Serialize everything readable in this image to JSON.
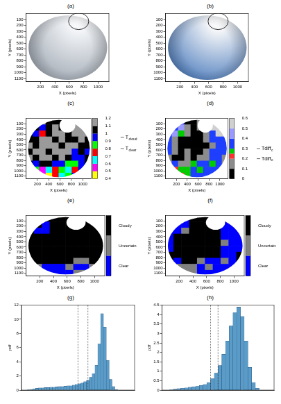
{
  "chart_data": [
    {
      "panel": "(a)",
      "type": "image",
      "color": "#9aa3ae",
      "x_label": "X (pixels)",
      "y_label": "Y (pixels)",
      "xlim": [
        0,
        1150
      ],
      "ylim": [
        1150,
        0
      ],
      "xticks": [
        200,
        400,
        600,
        800,
        1000
      ],
      "yticks": [
        100,
        200,
        300,
        400,
        500,
        600,
        700,
        800,
        900,
        1000,
        1100
      ],
      "grid": false,
      "sky_circle": {
        "x": 580,
        "y": 575,
        "r": 545
      },
      "sun_mask": {
        "x": 730,
        "y": 130,
        "r": 140
      }
    },
    {
      "panel": "(b)",
      "type": "image",
      "color": "#3f72b8",
      "x_label": "X (pixels)",
      "y_label": "Y (pixels)",
      "xlim": [
        0,
        1150
      ],
      "ylim": [
        1150,
        0
      ],
      "xticks": [
        200,
        400,
        600,
        800,
        1000
      ],
      "yticks": [
        100,
        200,
        300,
        400,
        500,
        600,
        700,
        800,
        900,
        1000,
        1100
      ],
      "grid": false,
      "sky_circle": {
        "x": 580,
        "y": 575,
        "r": 545
      },
      "sun_mask": {
        "x": 730,
        "y": 130,
        "r": 140
      }
    },
    {
      "panel": "(c)",
      "type": "heatmap",
      "x_label": "X (pixels)",
      "y_label": "Y (pixels)",
      "xlim": [
        0,
        1150
      ],
      "ylim": [
        1150,
        0
      ],
      "xticks": [
        200,
        400,
        600,
        800,
        1000
      ],
      "yticks": [
        100,
        200,
        300,
        400,
        500,
        600,
        700,
        800,
        900,
        1000,
        1100
      ],
      "grid": false,
      "sky_circle": {
        "x": 580,
        "y": 575,
        "r": 545
      },
      "sun_mask": {
        "x": 730,
        "y": 130,
        "r": 140
      },
      "cells": [
        [
          1.15,
          1.15,
          1.15,
          1.05,
          1.05,
          1.05,
          1.15,
          1.15,
          1.15,
          1.15
        ],
        [
          1.15,
          1.05,
          0.95,
          1.05,
          1.15,
          1.05,
          1.15,
          1.15,
          1.15,
          1.15
        ],
        [
          1.05,
          0.95,
          0.75,
          1.05,
          1.15,
          1.15,
          1.05,
          1.15,
          1.15,
          1.15
        ],
        [
          1.05,
          1.05,
          1.15,
          1.15,
          1.05,
          1.15,
          1.05,
          1.05,
          1.15,
          1.05
        ],
        [
          1.15,
          1.05,
          1.15,
          1.15,
          1.15,
          1.05,
          1.15,
          1.15,
          1.05,
          1.05
        ],
        [
          1.05,
          1.15,
          1.15,
          1.05,
          1.15,
          1.15,
          1.15,
          0.95,
          1.05,
          0.95
        ],
        [
          1.15,
          1.05,
          1.15,
          1.15,
          1.05,
          1.15,
          1.05,
          0.95,
          0.95,
          1.05
        ],
        [
          1.05,
          0.95,
          1.05,
          1.05,
          0.95,
          0.95,
          0.85,
          0.85,
          0.95,
          1.05
        ],
        [
          0.95,
          0.85,
          0.55,
          0.65,
          0.75,
          0.85,
          0.65,
          0.75,
          0.95,
          1.05
        ],
        [
          0.95,
          0.45,
          0.55,
          0.45,
          0.75,
          0.65,
          0.85,
          0.95,
          1.05,
          1.05
        ]
      ],
      "colorbar": {
        "range": [
          0.4,
          1.2
        ],
        "ticks": [
          0.4,
          0.5,
          0.6,
          0.7,
          0.8,
          0.9,
          1,
          1.1,
          1.2
        ],
        "bounds": [
          0.4,
          0.5,
          0.6,
          0.7,
          0.8,
          0.9,
          1,
          1.1,
          1.2
        ],
        "colors": [
          "#ffff00",
          "#ff00ff",
          "#00ffff",
          "#ff0000",
          "#00ff00",
          "#0000ff",
          "#000000",
          "#9a9a9a"
        ]
      },
      "annotations": [
        {
          "text": "T",
          "sub": "cloud",
          "value": 0.95
        },
        {
          "text": "T",
          "sub": "clear",
          "value": 0.8
        }
      ]
    },
    {
      "panel": "(d)",
      "type": "heatmap",
      "x_label": "X (pixels)",
      "y_label": "Y (pixels)",
      "xlim": [
        0,
        1150
      ],
      "ylim": [
        1150,
        0
      ],
      "xticks": [
        200,
        400,
        600,
        800,
        1000
      ],
      "yticks": [
        100,
        200,
        300,
        400,
        500,
        600,
        700,
        800,
        900,
        1000,
        1100
      ],
      "grid": false,
      "sky_circle": {
        "x": 580,
        "y": 575,
        "r": 545
      },
      "sun_mask": {
        "x": 730,
        "y": 130,
        "r": 140
      },
      "cells": [
        [
          0.55,
          0.35,
          0.35,
          0.05,
          0.05,
          0.15,
          0.55,
          0.55,
          0.55,
          0.55
        ],
        [
          0.35,
          0.35,
          0.45,
          0.15,
          0.05,
          0.15,
          0.35,
          0.55,
          0.55,
          0.55
        ],
        [
          0.35,
          0.45,
          0.27,
          0.15,
          0.05,
          0.05,
          0.15,
          0.35,
          0.55,
          0.55
        ],
        [
          0.35,
          0.15,
          0.05,
          0.05,
          0.05,
          0.05,
          0.15,
          0.35,
          0.35,
          0.35
        ],
        [
          0.35,
          0.15,
          0.05,
          0.05,
          0.05,
          0.05,
          0.05,
          0.15,
          0.35,
          0.35
        ],
        [
          0.35,
          0.15,
          0.05,
          0.15,
          0.05,
          0.05,
          0.15,
          0.35,
          0.35,
          0.35
        ],
        [
          0.15,
          0.05,
          0.05,
          0.15,
          0.05,
          0.15,
          0.15,
          0.35,
          0.35,
          0.15
        ],
        [
          0.15,
          0.35,
          0.15,
          0.15,
          0.27,
          0.35,
          0.35,
          0.27,
          0.35,
          0.15
        ],
        [
          0.35,
          0.22,
          0.27,
          0.27,
          0.35,
          0.27,
          0.35,
          0.35,
          0.35,
          0.15
        ],
        [
          0.35,
          0.27,
          0.22,
          0.27,
          0.35,
          0.35,
          0.35,
          0.35,
          0.15,
          0.15
        ]
      ],
      "colorbar": {
        "range": [
          0,
          0.6
        ],
        "ticks": [
          0,
          0.1,
          0.2,
          0.3,
          0.4,
          0.5,
          0.6
        ],
        "bounds": [
          0,
          0.1,
          0.2,
          0.25,
          0.3,
          0.4,
          0.5,
          0.6
        ],
        "colors": [
          "#000000",
          "#8c8c8c",
          "#ff3030",
          "#00cc00",
          "#1f3fff",
          "#9999ff",
          "#d0d0d0"
        ]
      },
      "annotations": [
        {
          "text": "Tdiff",
          "sub": "c",
          "value": 0.3
        },
        {
          "text": "Tdiff",
          "sub": "c",
          "value": 0.2
        }
      ]
    },
    {
      "panel": "(e)",
      "type": "heatmap",
      "x_label": "X (pixels)",
      "y_label": "Y (pixels)",
      "xlim": [
        0,
        1150
      ],
      "ylim": [
        1150,
        0
      ],
      "xticks": [
        200,
        400,
        600,
        800,
        1000
      ],
      "yticks": [
        100,
        200,
        300,
        400,
        500,
        600,
        700,
        800,
        900,
        1000,
        1100
      ],
      "grid": false,
      "sky_circle": {
        "x": 580,
        "y": 575,
        "r": 545
      },
      "sun_mask": {
        "x": 730,
        "y": 130,
        "r": 140
      },
      "classes": [
        {
          "label": "Cloudy",
          "color": "#000000"
        },
        {
          "label": "Uncertain",
          "color": "#808080"
        },
        {
          "label": "Clear",
          "color": "#0000ff"
        }
      ],
      "cells": [
        [
          0,
          0,
          0,
          0,
          0,
          0,
          0,
          0,
          0,
          0
        ],
        [
          0,
          0,
          2,
          0,
          0,
          0,
          0,
          0,
          0,
          0
        ],
        [
          0,
          2,
          2,
          0,
          0,
          0,
          0,
          0,
          0,
          0
        ],
        [
          0,
          0,
          0,
          0,
          0,
          0,
          0,
          0,
          0,
          0
        ],
        [
          0,
          0,
          0,
          0,
          0,
          0,
          0,
          0,
          0,
          0
        ],
        [
          0,
          0,
          0,
          0,
          0,
          0,
          0,
          0,
          0,
          0
        ],
        [
          0,
          0,
          0,
          0,
          0,
          0,
          0,
          0,
          0,
          0
        ],
        [
          0,
          0,
          0,
          0,
          0,
          0,
          1,
          1,
          0,
          0
        ],
        [
          0,
          1,
          2,
          2,
          2,
          1,
          2,
          2,
          1,
          0
        ],
        [
          0,
          2,
          2,
          2,
          2,
          2,
          1,
          1,
          0,
          0
        ]
      ]
    },
    {
      "panel": "(f)",
      "type": "heatmap",
      "x_label": "X (pixels)",
      "y_label": "Y (pixels)",
      "xlim": [
        0,
        1150
      ],
      "ylim": [
        1150,
        0
      ],
      "xticks": [
        200,
        400,
        600,
        800,
        1000
      ],
      "yticks": [
        100,
        200,
        300,
        400,
        500,
        600,
        700,
        800,
        900,
        1000,
        1100
      ],
      "grid": false,
      "sky_circle": {
        "x": 580,
        "y": 575,
        "r": 545
      },
      "sun_mask": {
        "x": 730,
        "y": 130,
        "r": 140
      },
      "classes": [
        {
          "label": "Cloudy",
          "color": "#000000"
        },
        {
          "label": "Uncertain",
          "color": "#808080"
        },
        {
          "label": "Clear",
          "color": "#0000ff"
        }
      ],
      "cells": [
        [
          2,
          2,
          2,
          0,
          0,
          0,
          2,
          2,
          2,
          2
        ],
        [
          2,
          2,
          2,
          0,
          0,
          0,
          2,
          2,
          2,
          2
        ],
        [
          2,
          2,
          1,
          0,
          0,
          0,
          0,
          2,
          2,
          2
        ],
        [
          2,
          0,
          0,
          0,
          0,
          0,
          0,
          2,
          2,
          2
        ],
        [
          2,
          0,
          0,
          0,
          0,
          0,
          0,
          1,
          2,
          2
        ],
        [
          2,
          0,
          0,
          0,
          0,
          0,
          0,
          2,
          2,
          2
        ],
        [
          0,
          0,
          0,
          0,
          0,
          0,
          0,
          2,
          2,
          0
        ],
        [
          0,
          2,
          0,
          0,
          1,
          2,
          2,
          1,
          2,
          0
        ],
        [
          2,
          1,
          1,
          1,
          2,
          1,
          2,
          2,
          2,
          0
        ],
        [
          2,
          1,
          1,
          1,
          2,
          2,
          2,
          2,
          0,
          0
        ]
      ]
    },
    {
      "panel": "(g)",
      "type": "histogram",
      "color": "#5a9bc8",
      "y_label": "pdf",
      "tick_labels": "y",
      "grid": false,
      "xlim": [
        0.4,
        1.2
      ],
      "ylim": [
        0,
        12
      ],
      "yticks": [
        0,
        2,
        4,
        6,
        8,
        10,
        12
      ],
      "bins": [
        0.4,
        0.42,
        0.44,
        0.46,
        0.48,
        0.5,
        0.52,
        0.54,
        0.56,
        0.58,
        0.6,
        0.62,
        0.64,
        0.66,
        0.68,
        0.7,
        0.72,
        0.74,
        0.76,
        0.78,
        0.8,
        0.82,
        0.84,
        0.86,
        0.88,
        0.9,
        0.92,
        0.94,
        0.96,
        0.98,
        1,
        1.02,
        1.04,
        1.06,
        1.08,
        1.1,
        1.12,
        1.14,
        1.16,
        1.18,
        1.2
      ],
      "values": [
        0,
        0,
        0.05,
        0.1,
        0.2,
        0.25,
        0.3,
        0.3,
        0.35,
        0.35,
        0.4,
        0.4,
        0.45,
        0.5,
        0.5,
        0.55,
        0.6,
        0.6,
        0.7,
        0.8,
        0.9,
        1.0,
        1.2,
        1.4,
        1.8,
        2.3,
        3.5,
        6.5,
        10.8,
        8.9,
        4.2,
        1.5,
        0.5,
        0.1,
        0,
        0,
        0,
        0,
        0,
        0
      ],
      "vlines": [
        0.8,
        0.87
      ]
    },
    {
      "panel": "(h)",
      "type": "histogram",
      "color": "#5a9bc8",
      "y_label": "pdf",
      "tick_labels": "y",
      "grid": false,
      "xlim": [
        0,
        0.6
      ],
      "ylim": [
        0,
        4.5
      ],
      "yticks": [
        0,
        0.5,
        1,
        1.5,
        2,
        2.5,
        3,
        3.5,
        4,
        4.5
      ],
      "bins": [
        0,
        0.02,
        0.04,
        0.06,
        0.08,
        0.1,
        0.12,
        0.14,
        0.16,
        0.18,
        0.2,
        0.22,
        0.24,
        0.26,
        0.28,
        0.3,
        0.32,
        0.34,
        0.36,
        0.38,
        0.4,
        0.42,
        0.44,
        0.46,
        0.48,
        0.5,
        0.52,
        0.54,
        0.56,
        0.58,
        0.6
      ],
      "values": [
        0,
        0,
        0.02,
        0.05,
        0.08,
        0.1,
        0.12,
        0.15,
        0.18,
        0.2,
        0.25,
        0.3,
        0.4,
        0.6,
        0.9,
        1.3,
        1.9,
        2.6,
        3.4,
        4.1,
        4.4,
        3.9,
        2.6,
        1.2,
        0.4,
        0.1,
        0,
        0,
        0,
        0
      ],
      "vlines": [
        0.26,
        0.3
      ]
    }
  ]
}
